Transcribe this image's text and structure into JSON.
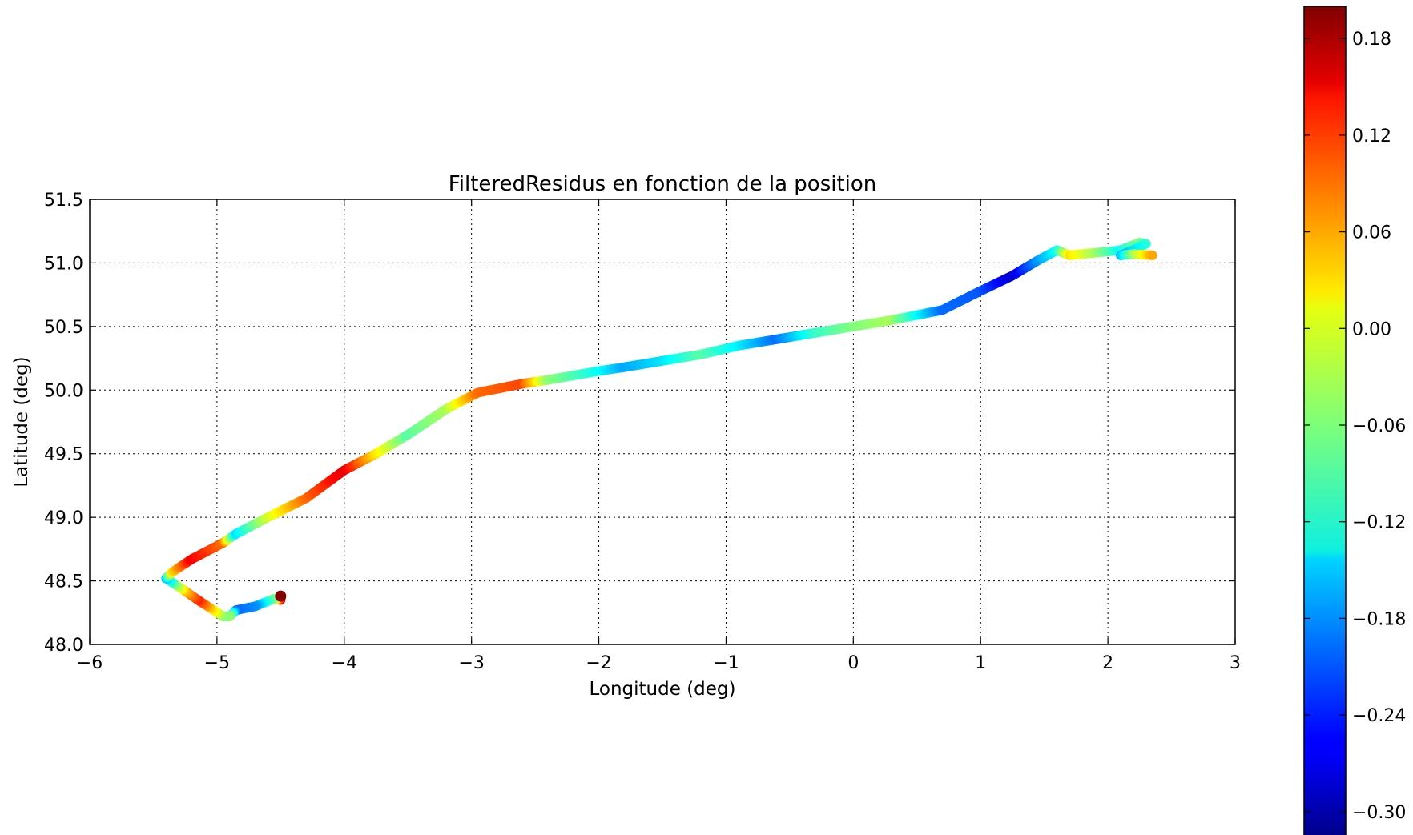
{
  "chart_data": {
    "type": "scatter",
    "title": "FilteredResidus en fonction de la position",
    "xlabel": "Longitude (deg)",
    "ylabel": "Latitude (deg)",
    "xlim": [
      -6,
      3
    ],
    "ylim": [
      48.0,
      51.5
    ],
    "xticks": [
      "−6",
      "−5",
      "−4",
      "−3",
      "−2",
      "−1",
      "0",
      "1",
      "2",
      "3"
    ],
    "xtick_values": [
      -6,
      -5,
      -4,
      -3,
      -2,
      -1,
      0,
      1,
      2,
      3
    ],
    "yticks": [
      "48.0",
      "48.5",
      "49.0",
      "49.5",
      "50.0",
      "50.5",
      "51.0",
      "51.5"
    ],
    "ytick_values": [
      48.0,
      48.5,
      49.0,
      49.5,
      50.0,
      50.5,
      51.0,
      51.5
    ],
    "grid": true,
    "colormap": "jet",
    "colorbar": {
      "min": -0.32,
      "max": 0.2,
      "tick_values": [
        0.18,
        0.12,
        0.06,
        0.0,
        -0.06,
        -0.12,
        -0.18,
        -0.24,
        -0.3
      ],
      "tick_labels": [
        "0.18",
        "0.12",
        "0.06",
        "0.00",
        "−0.06",
        "−0.12",
        "−0.18",
        "−0.24",
        "−0.30"
      ]
    },
    "points": [
      {
        "x": -4.5,
        "y": 48.38,
        "c": 0.2
      },
      {
        "x": -4.5,
        "y": 48.35,
        "c": 0.15
      },
      {
        "x": -4.55,
        "y": 48.36,
        "c": -0.05
      },
      {
        "x": -4.7,
        "y": 48.3,
        "c": -0.18
      },
      {
        "x": -4.85,
        "y": 48.27,
        "c": -0.2
      },
      {
        "x": -4.9,
        "y": 48.22,
        "c": -0.05
      },
      {
        "x": -4.95,
        "y": 48.22,
        "c": -0.06
      },
      {
        "x": -5.15,
        "y": 48.35,
        "c": 0.12
      },
      {
        "x": -5.25,
        "y": 48.42,
        "c": 0.04
      },
      {
        "x": -5.4,
        "y": 48.52,
        "c": -0.15
      },
      {
        "x": -5.35,
        "y": 48.57,
        "c": 0.02
      },
      {
        "x": -5.2,
        "y": 48.67,
        "c": 0.14
      },
      {
        "x": -4.95,
        "y": 48.8,
        "c": 0.08
      },
      {
        "x": -4.85,
        "y": 48.87,
        "c": -0.14
      },
      {
        "x": -4.6,
        "y": 49.0,
        "c": -0.02
      },
      {
        "x": -4.3,
        "y": 49.15,
        "c": 0.08
      },
      {
        "x": -4.0,
        "y": 49.37,
        "c": 0.15
      },
      {
        "x": -3.75,
        "y": 49.5,
        "c": 0.02
      },
      {
        "x": -3.5,
        "y": 49.65,
        "c": -0.08
      },
      {
        "x": -3.2,
        "y": 49.85,
        "c": -0.04
      },
      {
        "x": -2.95,
        "y": 49.98,
        "c": 0.08
      },
      {
        "x": -2.6,
        "y": 50.05,
        "c": 0.1
      },
      {
        "x": -2.4,
        "y": 50.08,
        "c": -0.05
      },
      {
        "x": -2.0,
        "y": 50.15,
        "c": -0.12
      },
      {
        "x": -1.8,
        "y": 50.18,
        "c": -0.17
      },
      {
        "x": -1.5,
        "y": 50.23,
        "c": -0.14
      },
      {
        "x": -1.2,
        "y": 50.28,
        "c": -0.08
      },
      {
        "x": -0.9,
        "y": 50.35,
        "c": -0.13
      },
      {
        "x": -0.6,
        "y": 50.4,
        "c": -0.2
      },
      {
        "x": -0.3,
        "y": 50.45,
        "c": -0.1
      },
      {
        "x": 0.0,
        "y": 50.5,
        "c": -0.06
      },
      {
        "x": 0.3,
        "y": 50.55,
        "c": -0.04
      },
      {
        "x": 0.7,
        "y": 50.63,
        "c": -0.2
      },
      {
        "x": 1.0,
        "y": 50.78,
        "c": -0.21
      },
      {
        "x": 1.25,
        "y": 50.9,
        "c": -0.28
      },
      {
        "x": 1.45,
        "y": 51.02,
        "c": -0.18
      },
      {
        "x": 1.6,
        "y": 51.1,
        "c": -0.12
      },
      {
        "x": 1.7,
        "y": 51.06,
        "c": 0.02
      },
      {
        "x": 1.9,
        "y": 51.08,
        "c": -0.04
      },
      {
        "x": 2.1,
        "y": 51.1,
        "c": -0.12
      },
      {
        "x": 2.25,
        "y": 51.16,
        "c": -0.06
      },
      {
        "x": 2.3,
        "y": 51.15,
        "c": -0.1
      },
      {
        "x": 2.1,
        "y": 51.06,
        "c": -0.16
      },
      {
        "x": 2.2,
        "y": 51.07,
        "c": -0.05
      },
      {
        "x": 2.35,
        "y": 51.06,
        "c": 0.05
      }
    ]
  }
}
